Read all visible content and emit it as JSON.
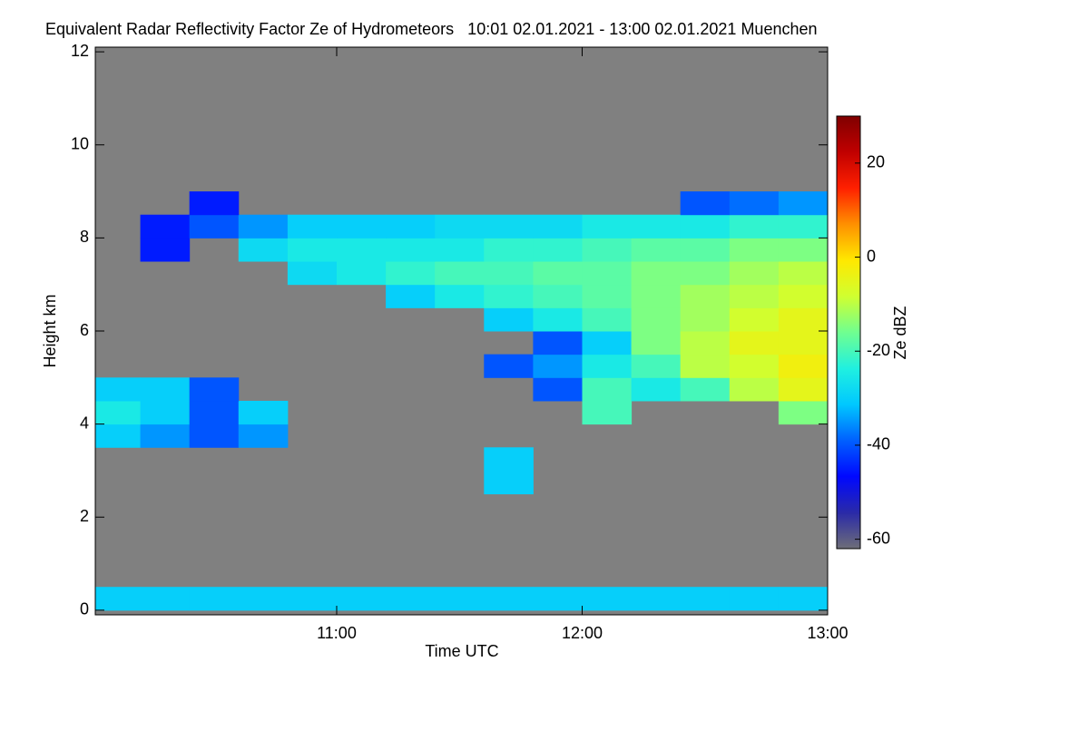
{
  "chart_data": {
    "type": "heatmap",
    "title": "Equivalent Radar Reflectivity Factor Ze of Hydrometeors   10:01 02.01.2021 - 13:00 02.01.2021 Muenchen",
    "x_label": "Time UTC",
    "y_label": "Height km",
    "colorbar_label": "Ze dBZ",
    "background_color": "#808080",
    "xlim": [
      10.0167,
      13.0
    ],
    "xticks": [
      {
        "value": 11,
        "label": "11:00"
      },
      {
        "value": 12,
        "label": "12:00"
      },
      {
        "value": 13,
        "label": "13:00"
      }
    ],
    "ylim": [
      -0.1,
      12.1
    ],
    "yticks": [
      0,
      2,
      4,
      6,
      8,
      10,
      12
    ],
    "zlim": [
      -62,
      30
    ],
    "zticks": [
      -60,
      -40,
      -20,
      0,
      20
    ],
    "colormap": [
      "#6e6e78",
      "#2a2aa8",
      "#0008ff",
      "#0060ff",
      "#00c8ff",
      "#20f0e0",
      "#70ff90",
      "#d0ff30",
      "#ffe800",
      "#ff9000",
      "#ff2000",
      "#c00000",
      "#800000"
    ],
    "x": [
      10.1,
      10.3,
      10.5,
      10.7,
      10.9,
      11.1,
      11.3,
      11.5,
      11.7,
      11.9,
      12.1,
      12.3,
      12.5,
      12.7,
      12.9
    ],
    "y": [
      0.25,
      0.75,
      1.25,
      1.75,
      2.25,
      2.75,
      3.25,
      3.75,
      4.25,
      4.75,
      5.25,
      5.75,
      6.25,
      6.75,
      7.25,
      7.75,
      8.25,
      8.75
    ],
    "values": [
      [
        -30,
        -30,
        -30,
        -30,
        -30,
        -30,
        -30,
        -30,
        -30,
        -30,
        -30,
        -30,
        -30,
        -30,
        -30
      ],
      [
        null,
        null,
        null,
        null,
        null,
        null,
        null,
        null,
        null,
        null,
        null,
        null,
        null,
        null,
        null
      ],
      [
        null,
        null,
        null,
        null,
        null,
        null,
        null,
        null,
        null,
        null,
        null,
        null,
        null,
        null,
        null
      ],
      [
        null,
        null,
        null,
        null,
        null,
        null,
        null,
        null,
        null,
        null,
        null,
        null,
        null,
        null,
        null
      ],
      [
        null,
        null,
        null,
        null,
        null,
        null,
        null,
        null,
        null,
        null,
        null,
        null,
        null,
        null,
        null
      ],
      [
        null,
        null,
        null,
        null,
        null,
        null,
        null,
        null,
        -30,
        null,
        null,
        null,
        null,
        null,
        null
      ],
      [
        null,
        null,
        null,
        null,
        null,
        null,
        null,
        null,
        -30,
        null,
        null,
        null,
        null,
        null,
        null
      ],
      [
        -30,
        -35,
        -40,
        -35,
        null,
        null,
        null,
        null,
        null,
        null,
        null,
        null,
        null,
        null,
        null
      ],
      [
        -25,
        -30,
        -40,
        -30,
        null,
        null,
        null,
        null,
        null,
        null,
        -20,
        null,
        null,
        null,
        -15
      ],
      [
        -30,
        -30,
        -40,
        null,
        null,
        null,
        null,
        null,
        null,
        -40,
        -20,
        -25,
        -20,
        -10,
        -5
      ],
      [
        null,
        null,
        null,
        null,
        null,
        null,
        null,
        null,
        -40,
        -35,
        -25,
        -20,
        -10,
        -8,
        -3
      ],
      [
        null,
        null,
        null,
        null,
        null,
        null,
        null,
        null,
        null,
        -40,
        -30,
        -15,
        -10,
        -5,
        -5
      ],
      [
        null,
        null,
        null,
        null,
        null,
        null,
        null,
        null,
        -30,
        -25,
        -20,
        -15,
        -12,
        -8,
        -5
      ],
      [
        null,
        null,
        null,
        null,
        null,
        null,
        -30,
        -25,
        -22,
        -20,
        -18,
        -15,
        -12,
        -10,
        -8
      ],
      [
        null,
        null,
        null,
        null,
        -28,
        -25,
        -22,
        -20,
        -20,
        -18,
        -18,
        -15,
        -15,
        -12,
        -10
      ],
      [
        null,
        -45,
        null,
        -28,
        -25,
        -25,
        -25,
        -25,
        -22,
        -22,
        -20,
        -18,
        -18,
        -15,
        -15
      ],
      [
        null,
        -45,
        -40,
        -35,
        -30,
        -30,
        -30,
        -28,
        -28,
        -28,
        -25,
        -25,
        -25,
        -22,
        -22
      ],
      [
        null,
        null,
        -45,
        null,
        null,
        null,
        null,
        null,
        null,
        null,
        null,
        null,
        -40,
        -38,
        -35
      ]
    ]
  }
}
